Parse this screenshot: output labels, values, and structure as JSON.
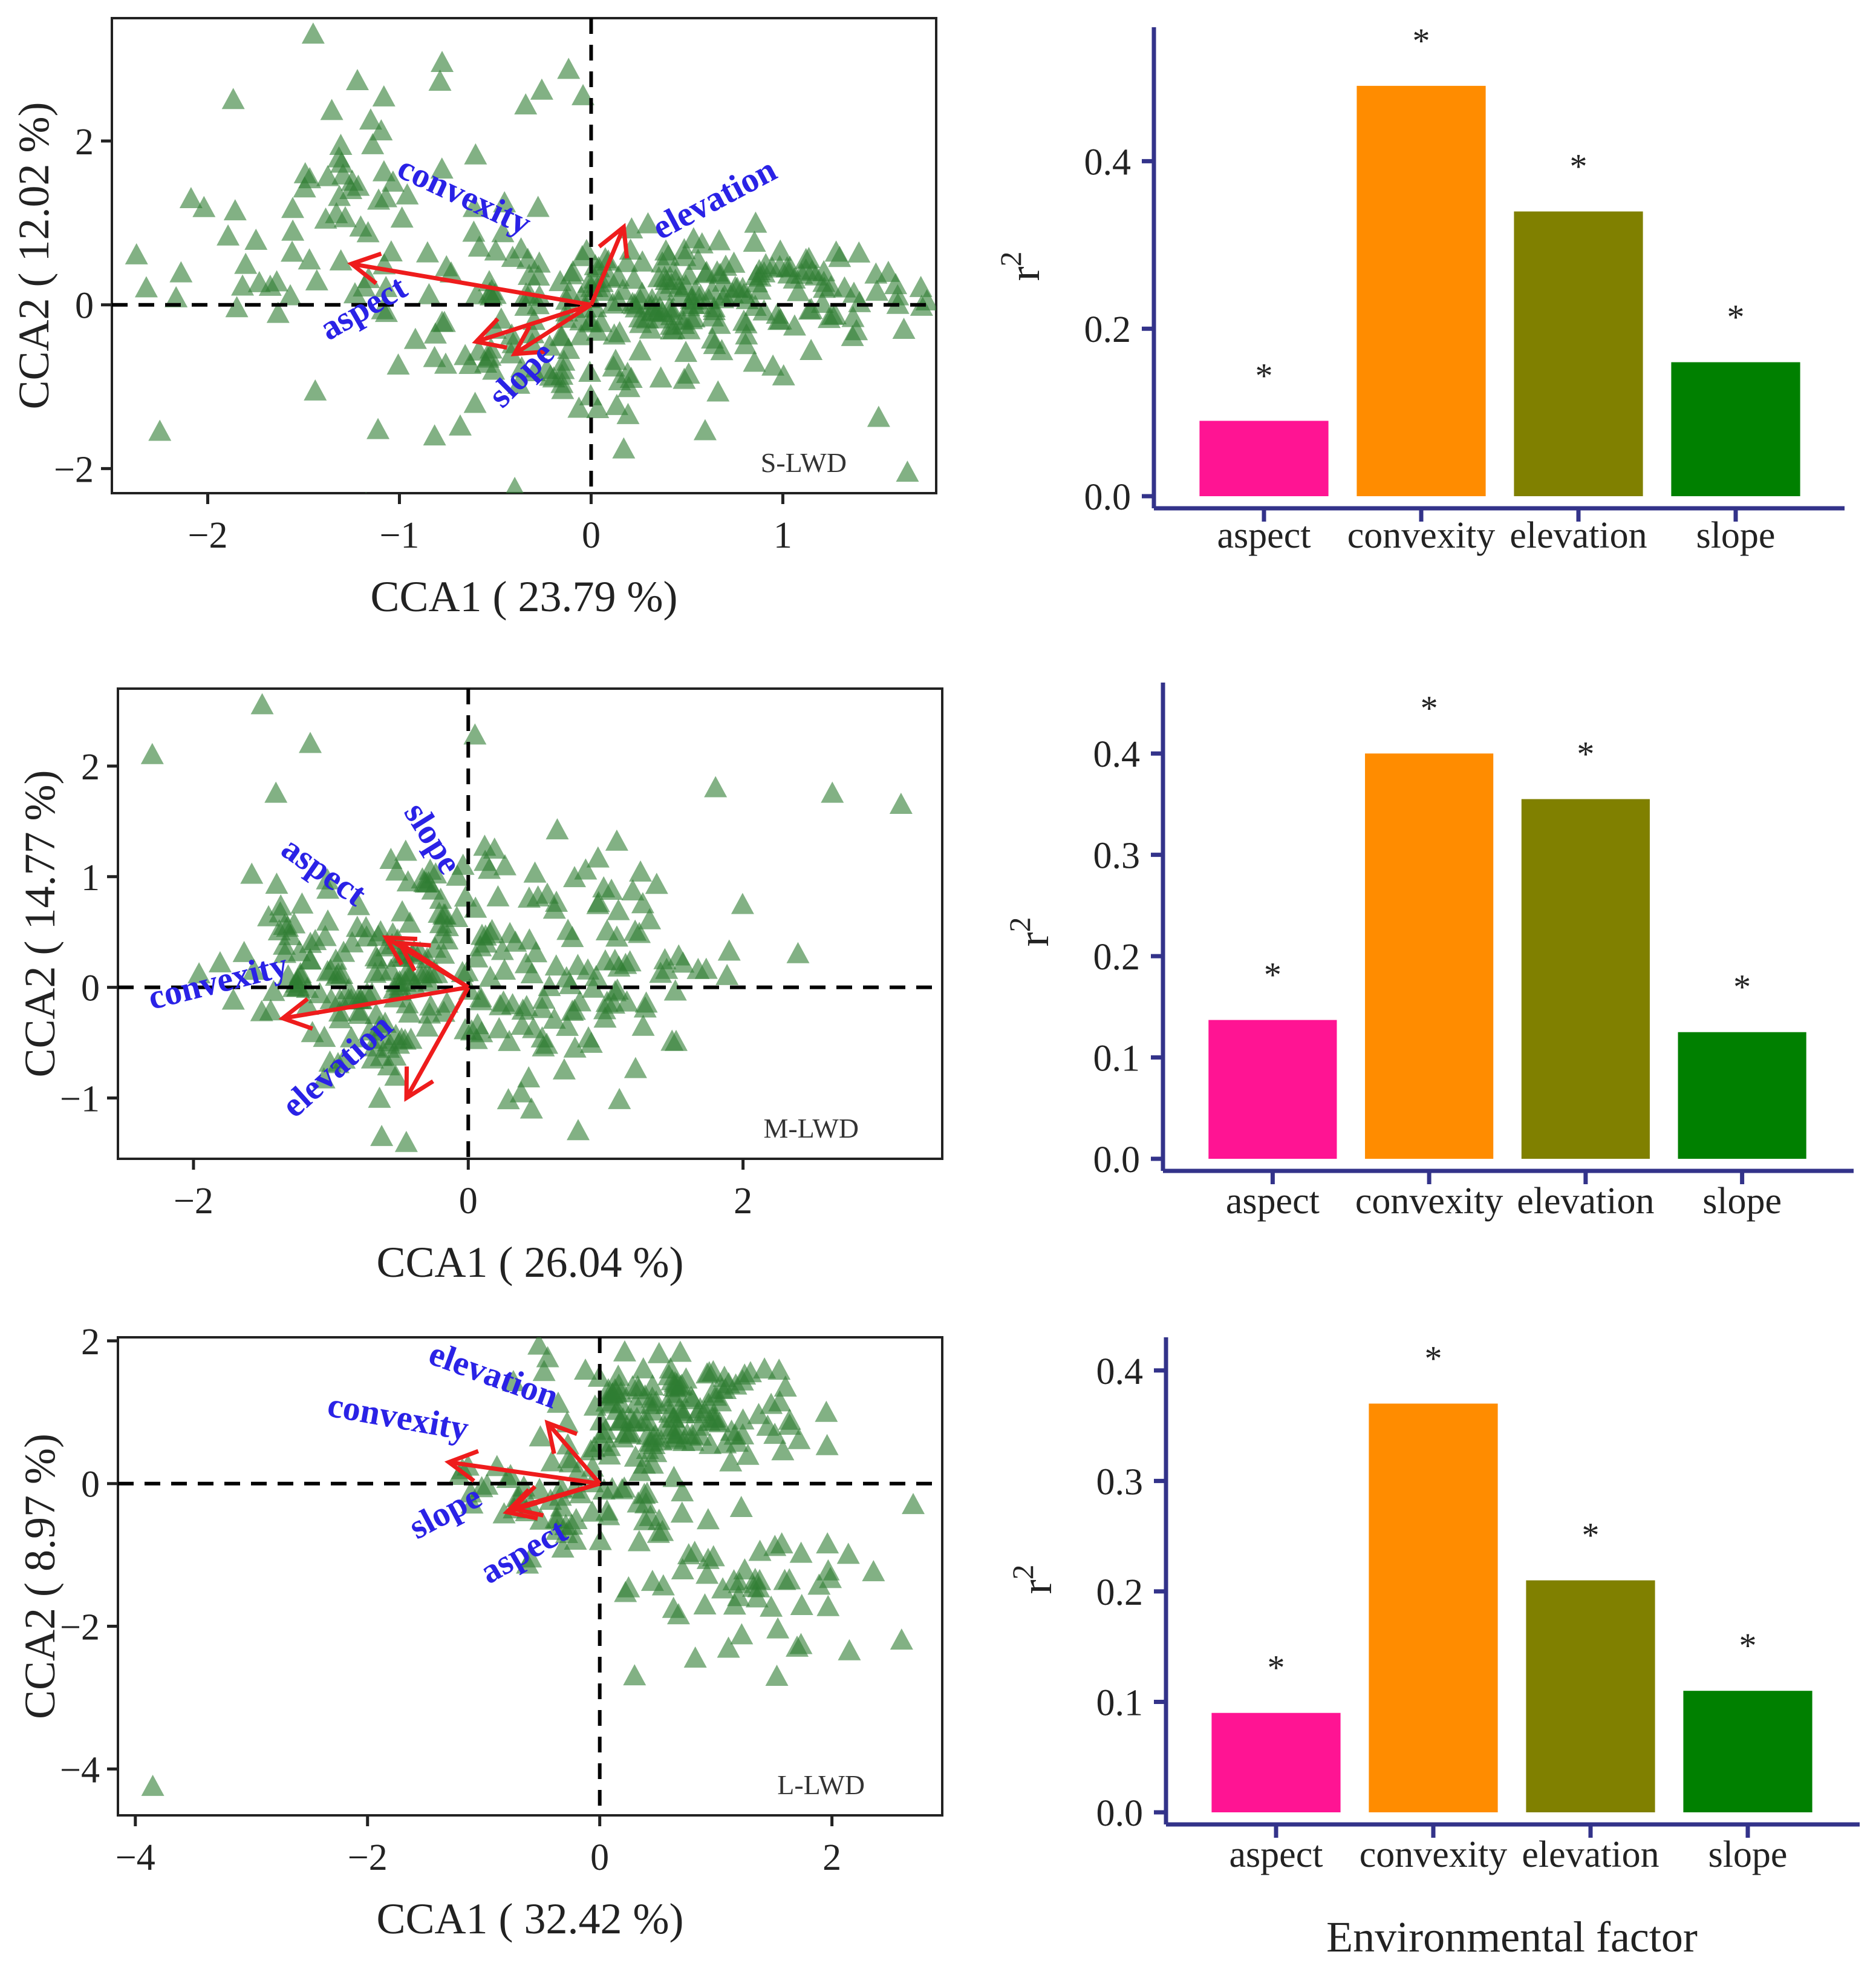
{
  "figure": {
    "colors": {
      "point": "#2e7d32",
      "arrow": "#ee1c1c",
      "arrow_label": "#2a22e6",
      "bar_axis": "#33338a",
      "frame": "#222222"
    }
  },
  "chart_data": [
    {
      "type": "scatter",
      "panel": "S-LWD",
      "xlabel": "CCA1 ( 23.79 %)",
      "ylabel": "CCA2 ( 12.02 %)",
      "xlim": [
        -2.5,
        1.8
      ],
      "ylim": [
        -2.3,
        3.5
      ],
      "xticks": [
        -2,
        -1,
        0,
        1
      ],
      "yticks": [
        -2,
        0,
        2
      ],
      "vectors": [
        {
          "name": "convexity",
          "x": -1.25,
          "y": 0.5
        },
        {
          "name": "elevation",
          "x": 0.17,
          "y": 0.95
        },
        {
          "name": "aspect",
          "x": -0.6,
          "y": -0.45
        },
        {
          "name": "slope",
          "x": -0.4,
          "y": -0.6
        }
      ],
      "clusters": [
        {
          "cx": -1.2,
          "cy": 1.0,
          "sx": 0.55,
          "sy": 1.2,
          "n": 90
        },
        {
          "cx": 0.6,
          "cy": 0.15,
          "sx": 0.55,
          "sy": 0.28,
          "n": 170
        },
        {
          "cx": 0.0,
          "cy": -0.3,
          "sx": 0.5,
          "sy": 0.6,
          "n": 90
        }
      ],
      "extra_points": [
        [
          -1.45,
          3.3
        ],
        [
          -2.25,
          -1.55
        ],
        [
          1.65,
          -2.05
        ],
        [
          1.6,
          0.0
        ],
        [
          -1.15,
          2.25
        ]
      ]
    },
    {
      "type": "bar",
      "categories": [
        "aspect",
        "convexity",
        "elevation",
        "slope"
      ],
      "values": [
        0.09,
        0.49,
        0.34,
        0.16
      ],
      "colors": [
        "#ff1493",
        "#ff8c00",
        "#808000",
        "#008000"
      ],
      "annotations": [
        "*",
        "*",
        "*",
        "*"
      ],
      "ylabel": "r",
      "ylabel_sup": "2",
      "ylim": [
        0,
        0.56
      ],
      "yticks": [
        {
          "v": 0.0,
          "t": "0.0"
        },
        {
          "v": 0.2,
          "t": "0.2"
        },
        {
          "v": 0.4,
          "t": "0.4"
        }
      ]
    },
    {
      "type": "scatter",
      "panel": "M-LWD",
      "xlabel": "CCA1 ( 26.04 %)",
      "ylabel": "CCA2 ( 14.77 %)",
      "xlim": [
        -2.55,
        3.45
      ],
      "ylim": [
        -1.55,
        2.7
      ],
      "xticks": [
        -2,
        0,
        2
      ],
      "yticks": [
        -1,
        0,
        1,
        2
      ],
      "vectors": [
        {
          "name": "convexity",
          "x": -1.35,
          "y": -0.28
        },
        {
          "name": "elevation",
          "x": -0.45,
          "y": -1.0
        },
        {
          "name": "aspect",
          "x": -0.6,
          "y": 0.45
        },
        {
          "name": "slope",
          "x": -0.5,
          "y": 0.4
        }
      ],
      "clusters": [
        {
          "cx": -0.75,
          "cy": 0.1,
          "sx": 0.45,
          "sy": 0.45,
          "n": 120
        },
        {
          "cx": 0.45,
          "cy": 0.2,
          "sx": 0.75,
          "sy": 0.6,
          "n": 170
        }
      ],
      "extra_points": [
        [
          -2.3,
          2.1
        ],
        [
          -1.5,
          2.55
        ],
        [
          -1.4,
          1.75
        ],
        [
          -1.15,
          2.2
        ],
        [
          1.8,
          1.8
        ],
        [
          2.65,
          1.75
        ],
        [
          3.15,
          1.65
        ],
        [
          2.4,
          0.3
        ],
        [
          0.8,
          -1.3
        ]
      ]
    },
    {
      "type": "bar",
      "categories": [
        "aspect",
        "convexity",
        "elevation",
        "slope"
      ],
      "values": [
        0.137,
        0.4,
        0.355,
        0.125
      ],
      "colors": [
        "#ff1493",
        "#ff8c00",
        "#808000",
        "#008000"
      ],
      "annotations": [
        "*",
        "*",
        "*",
        "*"
      ],
      "ylabel": "r",
      "ylabel_sup": "2",
      "ylim": [
        0,
        0.47
      ],
      "yticks": [
        {
          "v": 0.0,
          "t": "0.0"
        },
        {
          "v": 0.1,
          "t": "0.1"
        },
        {
          "v": 0.2,
          "t": "0.2"
        },
        {
          "v": 0.3,
          "t": "0.3"
        },
        {
          "v": 0.4,
          "t": "0.4"
        }
      ]
    },
    {
      "type": "scatter",
      "panel": "L-LWD",
      "xlabel": "CCA1 ( 32.42 %)",
      "ylabel": "CCA2 ( 8.97 %)",
      "xlim": [
        -4.15,
        2.95
      ],
      "ylim": [
        -4.65,
        2.05
      ],
      "xticks": [
        -4,
        -2,
        0,
        2
      ],
      "yticks": [
        -4,
        -2,
        0,
        2
      ],
      "vectors": [
        {
          "name": "elevation",
          "x": -0.45,
          "y": 0.85
        },
        {
          "name": "convexity",
          "x": -1.3,
          "y": 0.3
        },
        {
          "name": "slope",
          "x": -0.75,
          "y": -0.35
        },
        {
          "name": "aspect",
          "x": -0.8,
          "y": -0.4
        }
      ],
      "clusters": [
        {
          "cx": 0.6,
          "cy": 1.0,
          "sx": 0.5,
          "sy": 0.4,
          "n": 150
        },
        {
          "cx": -0.3,
          "cy": -0.2,
          "sx": 0.45,
          "sy": 0.35,
          "n": 60
        },
        {
          "cx": 1.3,
          "cy": -1.3,
          "sx": 0.55,
          "sy": 0.55,
          "n": 50
        }
      ],
      "extra_points": [
        [
          -3.85,
          -4.25
        ],
        [
          0.3,
          -2.7
        ],
        [
          2.6,
          -2.2
        ],
        [
          2.15,
          -2.35
        ],
        [
          2.7,
          -0.3
        ],
        [
          1.7,
          -2.3
        ]
      ]
    },
    {
      "type": "bar",
      "categories": [
        "aspect",
        "convexity",
        "elevation",
        "slope"
      ],
      "values": [
        0.09,
        0.37,
        0.21,
        0.11
      ],
      "colors": [
        "#ff1493",
        "#ff8c00",
        "#808000",
        "#008000"
      ],
      "annotations": [
        "*",
        "*",
        "*",
        "*"
      ],
      "ylabel": "r",
      "ylabel_sup": "2",
      "xlabel": "Environmental factor",
      "ylim": [
        0,
        0.43
      ],
      "yticks": [
        {
          "v": 0.0,
          "t": "0.0"
        },
        {
          "v": 0.1,
          "t": "0.1"
        },
        {
          "v": 0.2,
          "t": "0.2"
        },
        {
          "v": 0.3,
          "t": "0.3"
        },
        {
          "v": 0.4,
          "t": "0.4"
        }
      ]
    }
  ]
}
